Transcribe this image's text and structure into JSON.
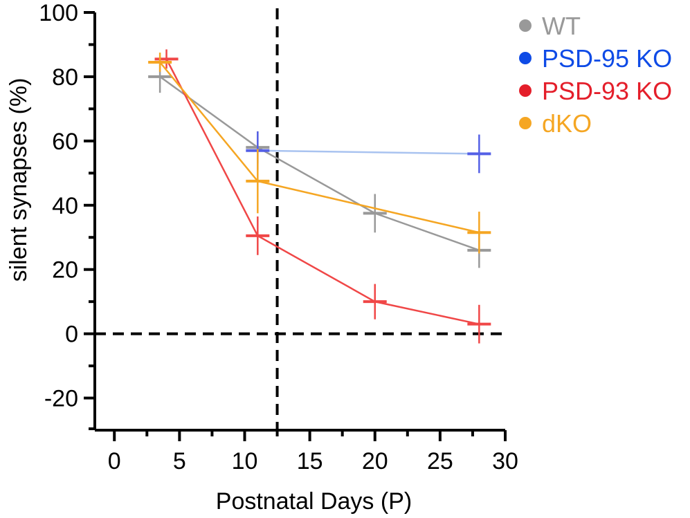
{
  "chart_data": {
    "type": "line",
    "xlabel": "Postnatal Days (P)",
    "ylabel": "silent synapses (%)",
    "xlim": [
      -1.5,
      30
    ],
    "ylim": [
      -30,
      100
    ],
    "xticks": [
      0,
      5,
      10,
      15,
      20,
      25,
      30
    ],
    "xtick_labels": [
      "0",
      "5",
      "10",
      "15",
      "20",
      "25",
      "30"
    ],
    "yticks": [
      -20,
      0,
      20,
      40,
      60,
      80,
      100
    ],
    "ytick_labels": [
      "-20",
      "0",
      "20",
      "40",
      "60",
      "80",
      "100"
    ],
    "grid": false,
    "legend_position": "top-right",
    "reference_lines": [
      {
        "orientation": "vertical",
        "x": 12.5,
        "style": "dashed"
      },
      {
        "orientation": "horizontal",
        "y": 0,
        "style": "dashed"
      }
    ],
    "series": [
      {
        "name": "WT",
        "color": "#999999",
        "legend_color": "#999999",
        "points": [
          {
            "x": 3.5,
            "y": 80,
            "err": 5
          },
          {
            "x": 11,
            "y": 58,
            "err": 5
          },
          {
            "x": 20,
            "y": 37.5,
            "err": 6
          },
          {
            "x": 28,
            "y": 26,
            "err": 5.5
          }
        ]
      },
      {
        "name": "PSD-95 KO",
        "color": "#a9c3f0",
        "marker_color": "#5460e6",
        "legend_color": "#0f4be6",
        "points": [
          {
            "x": 11,
            "y": 57,
            "err": 6
          },
          {
            "x": 28,
            "y": 56,
            "err": 6
          }
        ]
      },
      {
        "name": "PSD-93 KO",
        "color": "#f04747",
        "legend_color": "#e41e2a",
        "points": [
          {
            "x": 4,
            "y": 85.5,
            "err": 3
          },
          {
            "x": 11,
            "y": 30.5,
            "err": 6
          },
          {
            "x": 20,
            "y": 10,
            "err": 5.5
          },
          {
            "x": 28,
            "y": 3,
            "err": 6
          }
        ]
      },
      {
        "name": "dKO",
        "color": "#f5a623",
        "legend_color": "#f5a623",
        "points": [
          {
            "x": 3.5,
            "y": 84.5,
            "err": 3
          },
          {
            "x": 11,
            "y": 47.5,
            "err": 10
          },
          {
            "x": 28,
            "y": 31.5,
            "err": 6.5
          }
        ]
      }
    ]
  }
}
